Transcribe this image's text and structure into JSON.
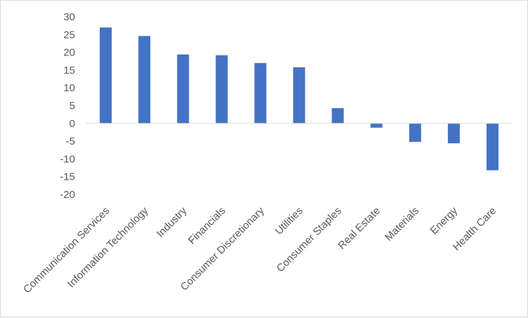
{
  "chart_data": {
    "type": "bar",
    "title": "",
    "xlabel": "",
    "ylabel": "",
    "categories": [
      "Communication Services",
      "Information Technology",
      "Industry",
      "Financials",
      "Consumer Discretionary",
      "Utilities",
      "Consumer Staples",
      "Real Estate",
      "Materials",
      "Energy",
      "Health Care"
    ],
    "values": [
      27,
      24.6,
      19.4,
      19.2,
      17,
      15.8,
      4.3,
      -1.2,
      -5.2,
      -5.6,
      -13.2
    ],
    "ylim": [
      -20,
      30
    ],
    "yticks": [
      "30",
      "25",
      "20",
      "15",
      "10",
      "5",
      "0",
      "-5",
      "-10",
      "-15",
      "-20"
    ],
    "grid": false,
    "legend": "none",
    "bar_color": "#4472c4",
    "axis_color": "#d9d9d9"
  }
}
